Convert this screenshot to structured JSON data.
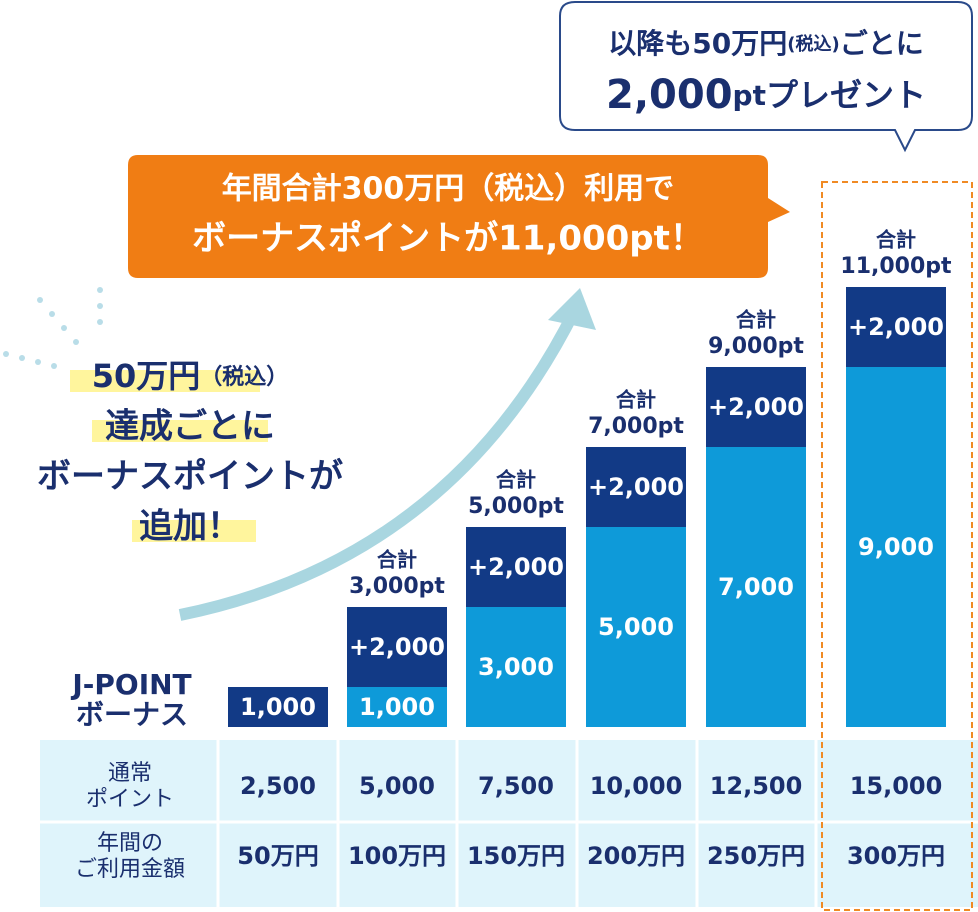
{
  "chart_data": {
    "type": "bar",
    "legend": [
      "J-POINT",
      "ボーナス"
    ],
    "series": [
      {
        "name": "通常",
        "color": "#0e9ad9",
        "values": [
          null,
          1000,
          3000,
          5000,
          7000,
          9000
        ],
        "value_labels": [
          null,
          "1,000",
          "3,000",
          "5,000",
          "7,000",
          "9,000"
        ]
      },
      {
        "name": "ボーナス",
        "color": "#123a86",
        "values": [
          1000,
          2000,
          2000,
          2000,
          2000,
          2000
        ],
        "value_labels": [
          "1,000",
          "+2,000",
          "+2,000",
          "+2,000",
          "+2,000",
          "+2,000"
        ]
      }
    ],
    "totals": {
      "label": "合計",
      "values": [
        null,
        3000,
        5000,
        7000,
        9000,
        11000
      ],
      "value_labels": [
        null,
        "3,000pt",
        "5,000pt",
        "7,000pt",
        "9,000pt",
        "11,000pt"
      ]
    },
    "table": {
      "rows": [
        {
          "label": [
            "通常",
            "ポイント"
          ],
          "cells": [
            "2,500",
            "5,000",
            "7,500",
            "10,000",
            "12,500",
            "15,000"
          ]
        },
        {
          "label": [
            "年間の",
            "ご利用金額"
          ],
          "cells": [
            "50万円",
            "100万円",
            "150万円",
            "200万円",
            "250万円",
            "300万円"
          ]
        }
      ]
    },
    "callout": [
      "年間合計300万円（税込）利用で",
      "ボーナスポイントが11,000pt！"
    ],
    "bubble": {
      "line1": [
        "以降も50万円",
        "(税込)",
        "ごとに"
      ],
      "line2": [
        "2,000",
        "pt",
        "プレゼント"
      ]
    },
    "note": [
      [
        "50万円",
        "（税込）"
      ],
      "達成ごとに",
      "ボーナスポイントが",
      "追加！"
    ]
  }
}
